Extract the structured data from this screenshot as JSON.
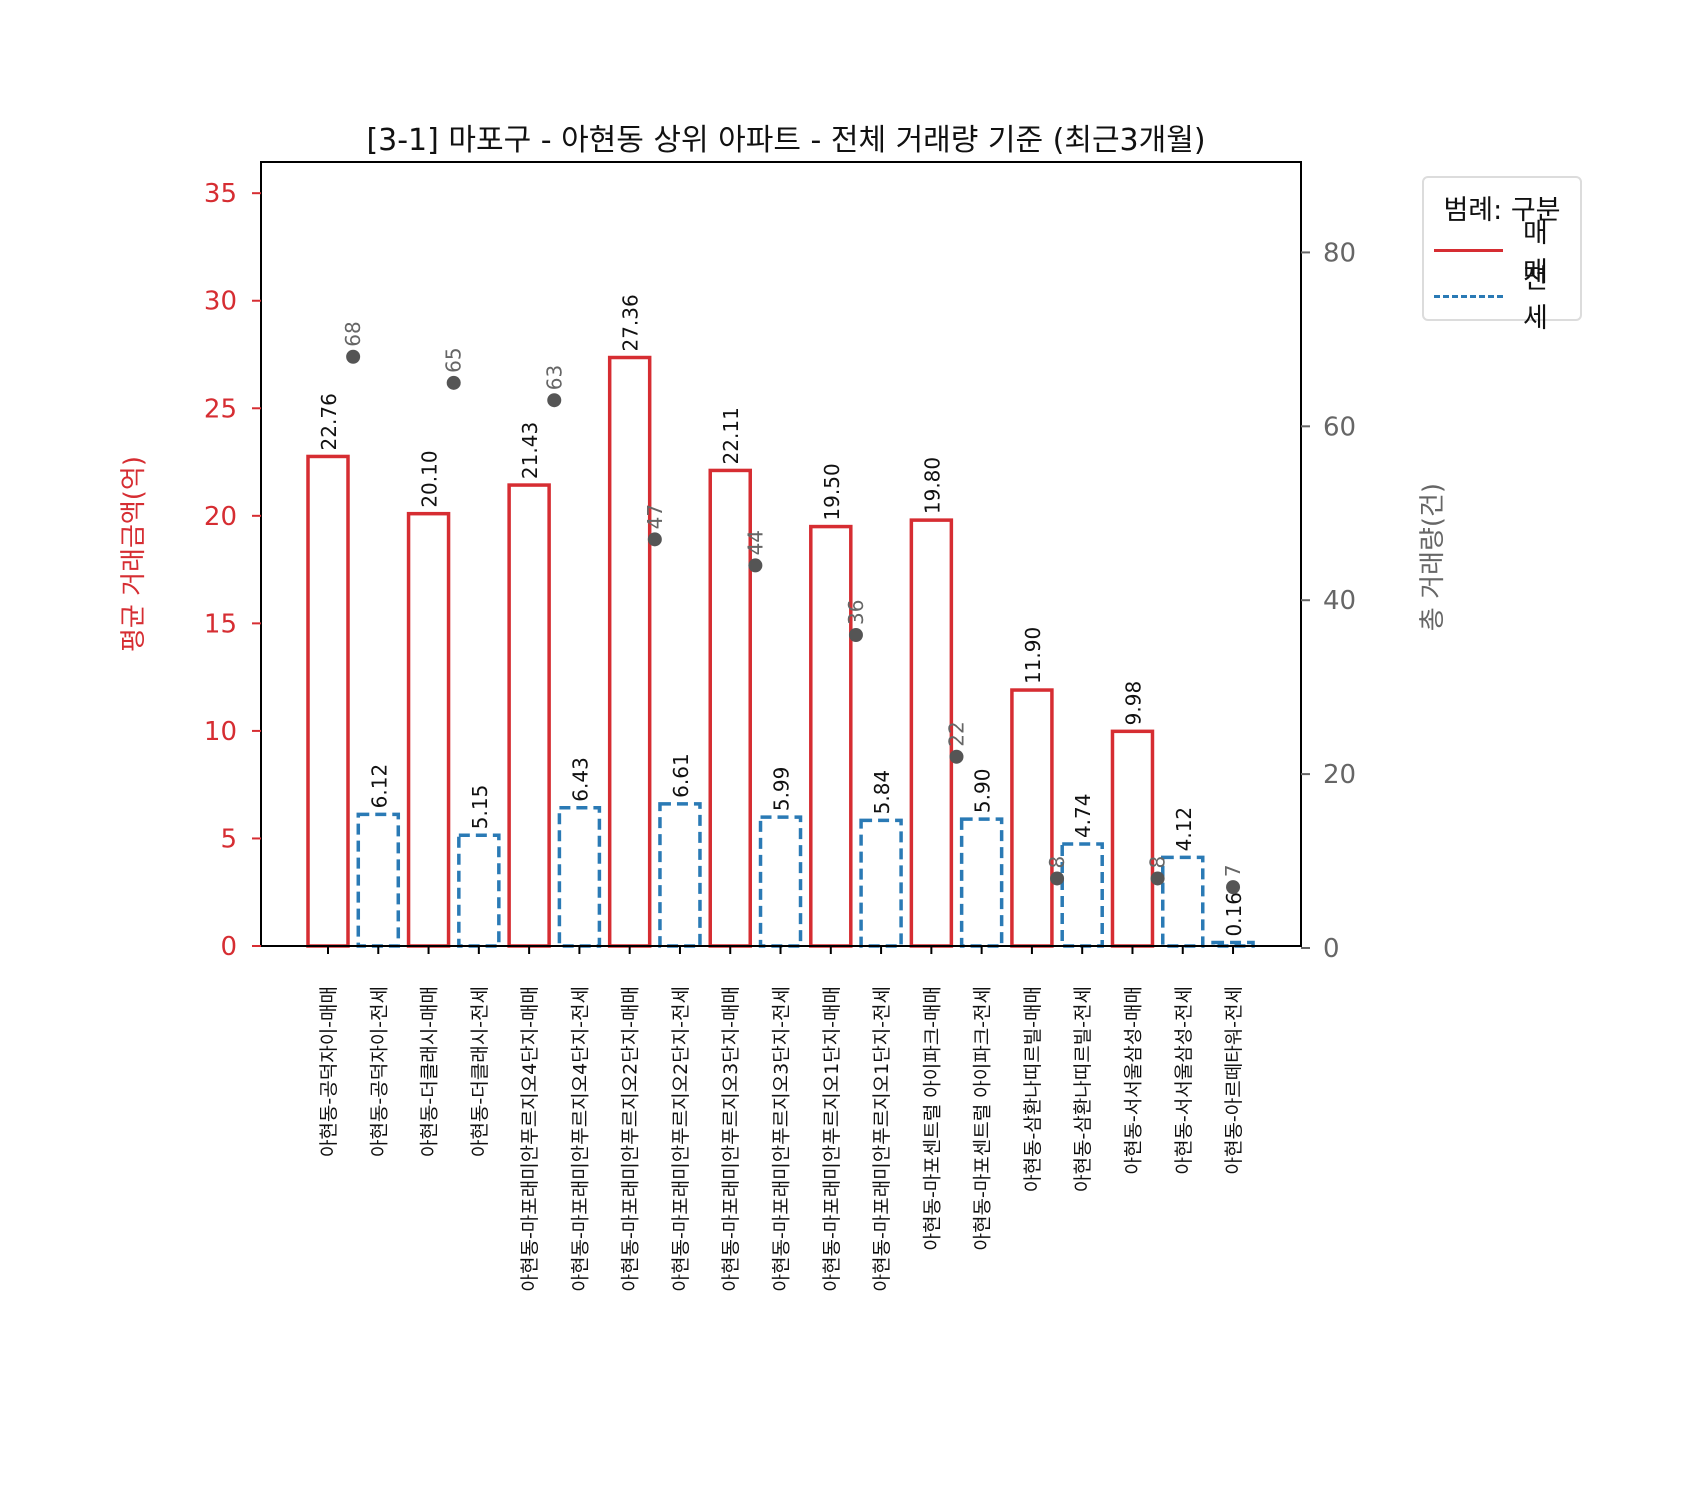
{
  "chart_data": {
    "type": "bar",
    "title": "[3-1] 마포구 - 아현동 상위 아파트 - 전체 거래량 기준 (최근3개월)",
    "xlabel": "",
    "ylabel": "평균 거래금액(억)",
    "y2label": "총 거래량(건)",
    "ylim": [
      0,
      36.45
    ],
    "y2lim": [
      0,
      90.4
    ],
    "yticks": [
      0,
      5,
      10,
      15,
      20,
      25,
      30,
      35
    ],
    "y2ticks": [
      0,
      20,
      40,
      60,
      80
    ],
    "grid": false,
    "legend": {
      "title": "범례: 구분",
      "position": "upper right, outside plot",
      "entries": [
        {
          "label": "매매",
          "color": "#d62d32",
          "style": "solid"
        },
        {
          "label": "전세",
          "color": "#2a7ab5",
          "style": "dashed"
        }
      ]
    },
    "categories": [
      "아현동-공덕자이-매매",
      "아현동-공덕자이-전세",
      "아현동-더클래시-매매",
      "아현동-더클래시-전세",
      "아현동-마포래미안푸르지오4단지-매매",
      "아현동-마포래미안푸르지오4단지-전세",
      "아현동-마포래미안푸르지오2단지-매매",
      "아현동-마포래미안푸르지오2단지-전세",
      "아현동-마포래미안푸르지오3단지-매매",
      "아현동-마포래미안푸르지오3단지-전세",
      "아현동-마포래미안푸르지오1단지-매매",
      "아현동-마포래미안푸르지오1단지-전세",
      "아현동-마포센트럴 아이파크-매매",
      "아현동-마포센트럴 아이파크-전세",
      "아현동-삼환나띠르빌-매매",
      "아현동-삼환나띠르빌-전세",
      "아현동-서서울삼성-매매",
      "아현동-서서울삼성-전세",
      "아현동-아르떼타워-전세"
    ],
    "series": [
      {
        "name": "평균 거래금액(억)",
        "axis": "left",
        "values": [
          22.76,
          6.12,
          20.1,
          5.15,
          21.43,
          6.43,
          27.36,
          6.61,
          22.11,
          5.99,
          19.5,
          5.84,
          19.8,
          5.9,
          11.9,
          4.74,
          9.98,
          4.12,
          0.16
        ],
        "labels": [
          "22.76",
          "6.12",
          "20.10",
          "5.15",
          "21.43",
          "6.43",
          "27.36",
          "6.61",
          "22.11",
          "5.99",
          "19.50",
          "5.84",
          "19.80",
          "5.90",
          "11.90",
          "4.74",
          "9.98",
          "4.12",
          "0.16"
        ],
        "types": [
          "매매",
          "전세",
          "매매",
          "전세",
          "매매",
          "전세",
          "매매",
          "전세",
          "매매",
          "전세",
          "매매",
          "전세",
          "매매",
          "전세",
          "매매",
          "전세",
          "매매",
          "전세",
          "전세"
        ]
      },
      {
        "name": "총 거래량(건)",
        "axis": "right",
        "type": "scatter",
        "color": "#555555",
        "x_positions": [
          0.5,
          2.5,
          4.5,
          6.5,
          8.5,
          10.5,
          12.5,
          14.5,
          16.5,
          18
        ],
        "complexes": [
          "공덕자이",
          "더클래시",
          "마포래미안푸르지오4단지",
          "마포래미안푸르지오2단지",
          "마포래미안푸르지오3단지",
          "마포래미안푸르지오1단지",
          "마포센트럴 아이파크",
          "삼환나띠르빌",
          "서서울삼성",
          "아르떼타워"
        ],
        "values": [
          68,
          65,
          63,
          47,
          44,
          36,
          22,
          8,
          8,
          7
        ]
      }
    ]
  },
  "colors": {
    "sale": "#d62d32",
    "jeonse": "#2a7ab5",
    "count_dot": "#555555",
    "right_axis_text": "#666666"
  }
}
